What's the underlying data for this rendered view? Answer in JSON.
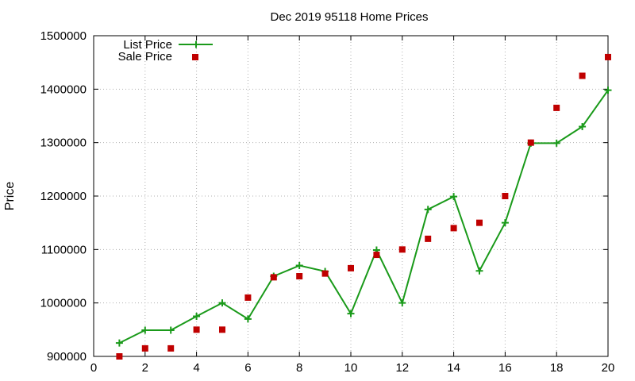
{
  "chart_data": {
    "type": "line",
    "title": "Dec 2019 95118 Home Prices",
    "xlabel": "",
    "ylabel": "Price",
    "xlim": [
      0,
      20
    ],
    "ylim": [
      900000,
      1500000
    ],
    "x_ticks": [
      0,
      2,
      4,
      6,
      8,
      10,
      12,
      14,
      16,
      18,
      20
    ],
    "y_ticks": [
      900000,
      1000000,
      1100000,
      1200000,
      1300000,
      1400000,
      1500000
    ],
    "grid": true,
    "legend_position": "top-left",
    "x": [
      1,
      2,
      3,
      4,
      5,
      6,
      7,
      8,
      9,
      10,
      11,
      12,
      13,
      14,
      15,
      16,
      17,
      18,
      19,
      20
    ],
    "series": [
      {
        "name": "List Price",
        "style": "line-cross",
        "color": "#1a9a1a",
        "values": [
          925000,
          949000,
          949000,
          975000,
          1000000,
          970000,
          1050000,
          1070000,
          1059000,
          980000,
          1099000,
          1000000,
          1175000,
          1199000,
          1060000,
          1150000,
          1299000,
          1299000,
          1330000,
          1398000
        ]
      },
      {
        "name": "Sale Price",
        "style": "square-points",
        "color": "#c00000",
        "values": [
          900000,
          915000,
          915000,
          950000,
          950000,
          1010000,
          1048000,
          1050000,
          1055000,
          1065000,
          1090000,
          1100000,
          1120000,
          1140000,
          1150000,
          1200000,
          1300000,
          1365000,
          1425000,
          1460000
        ]
      }
    ]
  }
}
